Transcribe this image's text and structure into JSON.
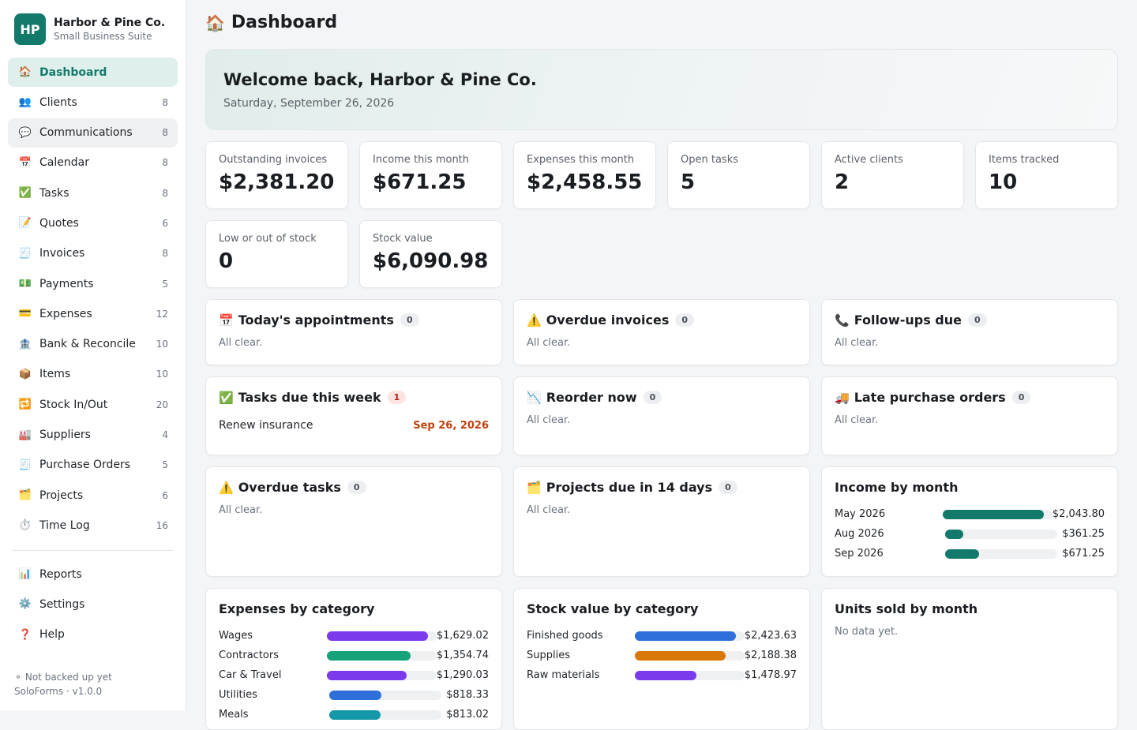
{
  "brand": {
    "initials": "HP",
    "name": "Harbor & Pine Co.",
    "subtitle": "Small Business Suite"
  },
  "nav": [
    {
      "icon": "🏠",
      "icon_name": "home-icon",
      "label": "Dashboard",
      "count": ""
    },
    {
      "icon": "👥",
      "icon_name": "clients-icon",
      "label": "Clients",
      "count": "8"
    },
    {
      "icon": "💬",
      "icon_name": "chat-icon",
      "label": "Communications",
      "count": "8"
    },
    {
      "icon": "📅",
      "icon_name": "calendar-icon",
      "label": "Calendar",
      "count": "8"
    },
    {
      "icon": "✅",
      "icon_name": "check-icon",
      "label": "Tasks",
      "count": "8"
    },
    {
      "icon": "📝",
      "icon_name": "memo-icon",
      "label": "Quotes",
      "count": "6"
    },
    {
      "icon": "🧾",
      "icon_name": "receipt-icon",
      "label": "Invoices",
      "count": "8"
    },
    {
      "icon": "💵",
      "icon_name": "money-icon",
      "label": "Payments",
      "count": "5"
    },
    {
      "icon": "💳",
      "icon_name": "card-icon",
      "label": "Expenses",
      "count": "12"
    },
    {
      "icon": "🏦",
      "icon_name": "bank-icon",
      "label": "Bank & Reconcile",
      "count": "10"
    },
    {
      "icon": "📦",
      "icon_name": "package-icon",
      "label": "Items",
      "count": "10"
    },
    {
      "icon": "🔁",
      "icon_name": "repeat-icon",
      "label": "Stock In/Out",
      "count": "20"
    },
    {
      "icon": "🏭",
      "icon_name": "factory-icon",
      "label": "Suppliers",
      "count": "4"
    },
    {
      "icon": "🧾",
      "icon_name": "receipt-icon",
      "label": "Purchase Orders",
      "count": "5"
    },
    {
      "icon": "🗂️",
      "icon_name": "folder-icon",
      "label": "Projects",
      "count": "6"
    },
    {
      "icon": "⏱️",
      "icon_name": "stopwatch-icon",
      "label": "Time Log",
      "count": "16"
    }
  ],
  "nav_secondary": [
    {
      "icon": "📊",
      "icon_name": "chart-icon",
      "label": "Reports"
    },
    {
      "icon": "⚙️",
      "icon_name": "gear-icon",
      "label": "Settings"
    },
    {
      "icon": "❓",
      "icon_name": "question-icon",
      "label": "Help"
    }
  ],
  "footer": {
    "backup": "⚬ Not backed up yet",
    "version": "SoloForms · v1.0.0"
  },
  "page": {
    "icon": "🏠",
    "title": "Dashboard"
  },
  "welcome": {
    "title": "Welcome back, Harbor & Pine Co.",
    "date": "Saturday, September 26, 2026"
  },
  "stats": [
    {
      "label": "Outstanding invoices",
      "value": "$2,381.20"
    },
    {
      "label": "Income this month",
      "value": "$671.25"
    },
    {
      "label": "Expenses this month",
      "value": "$2,458.55"
    },
    {
      "label": "Open tasks",
      "value": "5"
    },
    {
      "label": "Active clients",
      "value": "2"
    },
    {
      "label": "Items tracked",
      "value": "10"
    },
    {
      "label": "Low or out of stock",
      "value": "0"
    },
    {
      "label": "Stock value",
      "value": "$6,090.98"
    }
  ],
  "cards": {
    "appointments": {
      "icon": "📅",
      "title": "Today's appointments",
      "count": "0",
      "empty": "All clear."
    },
    "overdue_invoices": {
      "icon": "⚠️",
      "title": "Overdue invoices",
      "count": "0",
      "empty": "All clear."
    },
    "followups": {
      "icon": "📞",
      "title": "Follow-ups due",
      "count": "0",
      "empty": "All clear."
    },
    "tasks_week": {
      "icon": "✅",
      "title": "Tasks due this week",
      "count": "1",
      "task": "Renew insurance",
      "task_date": "Sep 26, 2026"
    },
    "reorder": {
      "icon": "📉",
      "title": "Reorder now",
      "count": "0",
      "empty": "All clear."
    },
    "late_po": {
      "icon": "🚚",
      "title": "Late purchase orders",
      "count": "0",
      "empty": "All clear."
    },
    "overdue_tasks": {
      "icon": "⚠️",
      "title": "Overdue tasks",
      "count": "0",
      "empty": "All clear."
    },
    "projects": {
      "icon": "🗂️",
      "title": "Projects due in 14 days",
      "count": "0",
      "empty": "All clear."
    },
    "units_sold": {
      "title": "Units sold by month",
      "empty": "No data yet."
    }
  },
  "chart_data": [
    {
      "type": "bar",
      "title": "Income by month",
      "categories": [
        "May 2026",
        "Aug 2026",
        "Sep 2026"
      ],
      "values": [
        2043.8,
        361.25,
        671.25
      ],
      "labels": [
        "$2,043.80",
        "$361.25",
        "$671.25"
      ],
      "colors": [
        "#137a6b",
        "#137a6b",
        "#137a6b"
      ]
    },
    {
      "type": "bar",
      "title": "Expenses by category",
      "categories": [
        "Wages",
        "Contractors",
        "Car & Travel",
        "Utilities",
        "Meals"
      ],
      "values": [
        1629.02,
        1354.74,
        1290.03,
        818.33,
        813.02
      ],
      "labels": [
        "$1,629.02",
        "$1,354.74",
        "$1,290.03",
        "$818.33",
        "$813.02"
      ],
      "colors": [
        "#7c3aed",
        "#16a37a",
        "#7c3aed",
        "#2f6fd9",
        "#1497a8"
      ]
    },
    {
      "type": "bar",
      "title": "Stock value by category",
      "categories": [
        "Finished goods",
        "Supplies",
        "Raw materials"
      ],
      "values": [
        2423.63,
        2188.38,
        1478.97
      ],
      "labels": [
        "$2,423.63",
        "$2,188.38",
        "$1,478.97"
      ],
      "colors": [
        "#2f6fd9",
        "#d97706",
        "#7c3aed"
      ]
    }
  ]
}
